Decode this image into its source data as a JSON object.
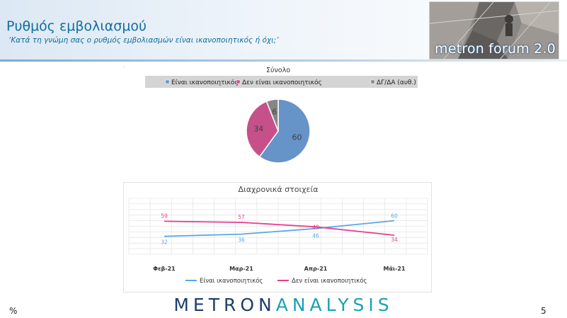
{
  "header": {
    "title": "Ρυθμός εμβολιασμού",
    "subtitle": "‘Κατά τη γνώμη σας ο ρυθμός εμβολιασμών είναι ικανοποιητικός ή όχι;’",
    "logo_text": "metron forum 2.0"
  },
  "chart_data": [
    {
      "type": "pie",
      "title": "Σύνολο",
      "legend_position": "top",
      "categories": [
        "Είναι ικανοποιητικός",
        "Δεν είναι ικανοποιητικός",
        "ΔΓ/ΔΑ (αυθ.)"
      ],
      "values": [
        60,
        34,
        6
      ],
      "colors": [
        "#6693c8",
        "#c6508a",
        "#868686"
      ]
    },
    {
      "type": "line",
      "title": "Διαχρονικά στοιχεία",
      "legend_position": "bottom",
      "grid": true,
      "categories": [
        "Φεβ-21",
        "Μαρ-21",
        "Απρ-21",
        "Μάι-21"
      ],
      "ylim": [
        0,
        100
      ],
      "series": [
        {
          "name": "Είναι ικανοποιητικός",
          "values": [
            32,
            36,
            46,
            60
          ],
          "color": "#5aa8e6"
        },
        {
          "name": "Δεν είναι ικανοποιητικός",
          "values": [
            59,
            57,
            49,
            34
          ],
          "color": "#e83e8c"
        }
      ]
    }
  ],
  "footer": {
    "brand_main": "METRON",
    "brand_accent": "ANALYSIS",
    "percent_sign": "%",
    "page_number": "5"
  }
}
